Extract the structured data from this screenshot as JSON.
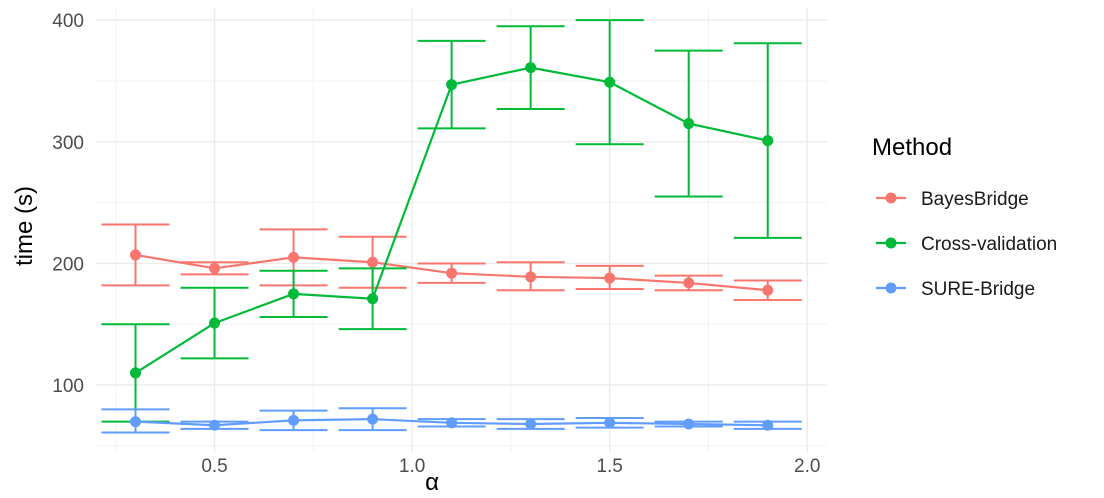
{
  "chart_data": {
    "type": "line",
    "xlabel": "α",
    "ylabel": "time (s)",
    "xlim": [
      0.2,
      2.05
    ],
    "ylim": [
      45,
      410
    ],
    "x_ticks": [
      0.5,
      1.0,
      1.5,
      2.0
    ],
    "x_tick_labels": [
      "0.5",
      "1.0",
      "1.5",
      "2.0"
    ],
    "y_ticks": [
      100,
      200,
      300,
      400
    ],
    "y_tick_labels": [
      "100",
      "200",
      "300",
      "400"
    ],
    "grid": true,
    "legend_position": "right",
    "legend_title": "Method",
    "x": [
      0.3,
      0.5,
      0.7,
      0.9,
      1.1,
      1.3,
      1.5,
      1.7,
      1.9
    ],
    "series": [
      {
        "name": "BayesBridge",
        "color": "#F8766D",
        "values": [
          207,
          196,
          205,
          201,
          192,
          189,
          188,
          184,
          178
        ],
        "lower": [
          182,
          191,
          182,
          180,
          184,
          178,
          179,
          178,
          170
        ],
        "upper": [
          232,
          201,
          228,
          222,
          200,
          201,
          198,
          190,
          186
        ]
      },
      {
        "name": "Cross-validation",
        "color": "#00BA38",
        "values": [
          110,
          151,
          175,
          171,
          347,
          361,
          349,
          315,
          301
        ],
        "lower": [
          70,
          122,
          156,
          146,
          311,
          327,
          298,
          255,
          221
        ],
        "upper": [
          150,
          180,
          194,
          196,
          383,
          395,
          400,
          375,
          381
        ]
      },
      {
        "name": "SURE-Bridge",
        "color": "#619CFF",
        "values": [
          70,
          67,
          71,
          72,
          69,
          68,
          69,
          68,
          67
        ],
        "lower": [
          61,
          64,
          63,
          63,
          66,
          64,
          65,
          66,
          64
        ],
        "upper": [
          80,
          70,
          79,
          81,
          72,
          72,
          73,
          70,
          70
        ]
      }
    ]
  }
}
